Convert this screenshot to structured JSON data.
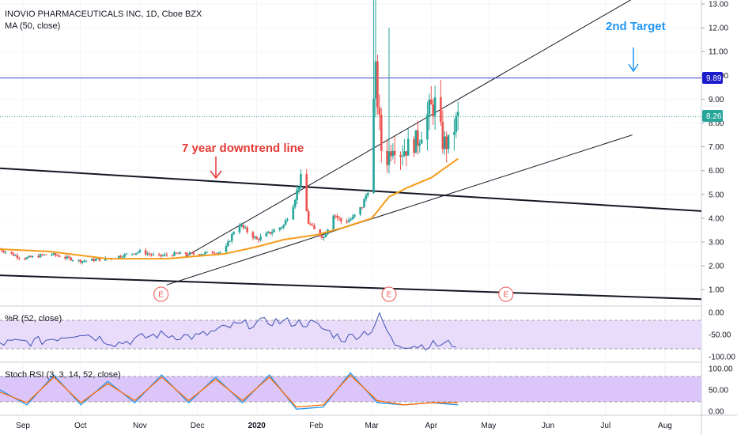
{
  "colors": {
    "up": "#26a69a",
    "down": "#ef5350",
    "ma": "#f59c1a",
    "annotation_red": "#e53935",
    "annotation_blue": "#2196f3",
    "hline": "#3f3fd1",
    "pct_r": "#3f51b5",
    "stoch_k": "#2196f3",
    "stoch_d": "#ff6d00",
    "band": "#e9dcfb",
    "band_stoch": "#dcc6f9",
    "price_tag_blue": "#1c1ccc",
    "price_tag_green": "#26a69a"
  },
  "header": {
    "title": "INOVIO PHARMACEUTICALS INC, 1D, Cboe BZX",
    "ma_label": "MA (50, close)",
    "pct_r_label": "%R (52, close)",
    "stoch_label": "Stoch RSI (3, 3, 14, 52, close)"
  },
  "annotations": {
    "downtrend": "7 year downtrend line",
    "target": "2nd Target",
    "earnings_marker": "E"
  },
  "axis": {
    "price_ticks": [
      "13.00",
      "12.00",
      "11.00",
      "10.00",
      "9.00",
      "8.00",
      "7.00",
      "6.00",
      "5.00",
      "4.00",
      "3.00",
      "2.00",
      "1.00"
    ],
    "pct_r_ticks": [
      "0.00",
      "-50.00",
      "-100.00"
    ],
    "stoch_ticks": [
      "100.00",
      "50.00",
      "0.00"
    ],
    "time_ticks": [
      "Sep",
      "Oct",
      "Nov",
      "Dec",
      "2020",
      "Feb",
      "Mar",
      "Apr",
      "May",
      "Jun",
      "Jul",
      "Aug"
    ],
    "price_tag_hline": "9.89",
    "price_tag_last": "8.26"
  },
  "chart_data": [
    {
      "type": "candlestick",
      "title": "INOVIO PHARMACEUTICALS INC, 1D, Cboe BZX",
      "ylim": [
        0.5,
        13.2
      ],
      "horizontal_line": 9.89,
      "last_price": 8.26,
      "series": [
        {
          "name": "price_close",
          "x": [
            "2019-08-20",
            "2019-09-01",
            "2019-09-15",
            "2019-10-01",
            "2019-10-15",
            "2019-11-01",
            "2019-11-10",
            "2019-11-20",
            "2019-12-01",
            "2019-12-15",
            "2019-12-22",
            "2020-01-01",
            "2020-01-08",
            "2020-01-15",
            "2020-01-20",
            "2020-01-24",
            "2020-01-28",
            "2020-02-01",
            "2020-02-05",
            "2020-02-10",
            "2020-02-15",
            "2020-02-20",
            "2020-02-25",
            "2020-02-28",
            "2020-03-03",
            "2020-03-06",
            "2020-03-09",
            "2020-03-12",
            "2020-03-16",
            "2020-03-20",
            "2020-03-25",
            "2020-03-31",
            "2020-04-03",
            "2020-04-07",
            "2020-04-10",
            "2020-04-15"
          ],
          "values": [
            2.7,
            2.3,
            2.5,
            2.2,
            2.3,
            2.6,
            2.4,
            2.5,
            2.5,
            2.6,
            3.8,
            3.1,
            3.4,
            3.7,
            4.6,
            5.7,
            3.8,
            3.4,
            3.2,
            4.2,
            3.8,
            4.0,
            4.5,
            5.2,
            10.0,
            6.9,
            6.5,
            7.2,
            6.8,
            7.0,
            7.3,
            8.5,
            8.8,
            7.2,
            7.1,
            8.26
          ]
        },
        {
          "name": "MA (50, close)",
          "x": [
            "2019-08-20",
            "2019-09-15",
            "2019-10-15",
            "2019-11-15",
            "2019-12-15",
            "2020-01-01",
            "2020-01-15",
            "2020-02-01",
            "2020-02-15",
            "2020-03-01",
            "2020-03-10",
            "2020-03-20",
            "2020-04-01",
            "2020-04-15"
          ],
          "values": [
            2.7,
            2.6,
            2.3,
            2.3,
            2.5,
            2.8,
            3.1,
            3.3,
            3.6,
            4.0,
            4.9,
            5.3,
            5.7,
            6.5
          ]
        }
      ],
      "trend_lines": [
        {
          "label": "7 year downtrend line",
          "from": [
            "2019-08-20",
            6.1
          ],
          "to": [
            "2020-08-20",
            4.3
          ]
        },
        {
          "from": [
            "2019-08-20",
            1.6
          ],
          "to": [
            "2020-08-20",
            0.6
          ]
        },
        {
          "from": [
            "2019-11-25",
            2.4
          ],
          "to": [
            "2020-08-01",
            14.0
          ]
        },
        {
          "from": [
            "2019-11-15",
            1.2
          ],
          "to": [
            "2020-07-15",
            7.5
          ]
        }
      ],
      "earnings_markers": [
        "2019-11-12",
        "2020-03-10",
        "2020-05-10"
      ]
    },
    {
      "type": "line",
      "title": "%R (52, close)",
      "ylim": [
        -100,
        0
      ],
      "bands": [
        -20,
        -80
      ],
      "series": [
        {
          "name": "%R",
          "x": [
            "2019-08-20",
            "2019-09-10",
            "2019-10-01",
            "2019-10-20",
            "2019-11-10",
            "2019-12-01",
            "2019-12-20",
            "2020-01-10",
            "2020-01-30",
            "2020-02-15",
            "2020-03-01",
            "2020-03-05",
            "2020-03-12",
            "2020-03-25",
            "2020-04-15"
          ],
          "values": [
            -70,
            -65,
            -45,
            -70,
            -50,
            -55,
            -30,
            -20,
            -25,
            -60,
            -40,
            -5,
            -70,
            -75,
            -70
          ]
        }
      ]
    },
    {
      "type": "line",
      "title": "Stoch RSI (3, 3, 14, 52, close)",
      "ylim": [
        0,
        100
      ],
      "bands": [
        80,
        20
      ],
      "series": [
        {
          "name": "K",
          "values": [
            50,
            15,
            85,
            15,
            70,
            20,
            85,
            20,
            80,
            20,
            85,
            5,
            10,
            90,
            20,
            15,
            20,
            15
          ]
        },
        {
          "name": "D",
          "values": [
            45,
            20,
            80,
            20,
            65,
            25,
            80,
            25,
            75,
            25,
            80,
            10,
            15,
            85,
            25,
            15,
            20,
            20
          ]
        }
      ]
    }
  ]
}
